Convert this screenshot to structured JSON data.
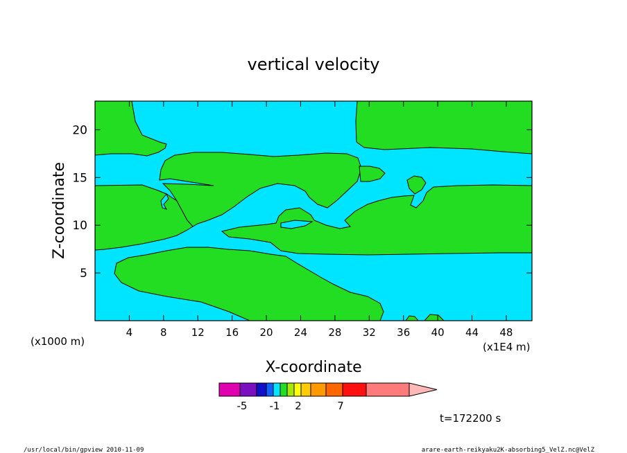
{
  "chart_data": {
    "type": "contour",
    "title": "vertical velocity",
    "xlabel": "X-coordinate",
    "ylabel": "Z-coordinate",
    "x_unit": "(x1E4 m)",
    "y_unit": "(x1000 m)",
    "xlim": [
      0,
      51
    ],
    "ylim": [
      0,
      23
    ],
    "x_ticks": [
      4,
      8,
      12,
      16,
      20,
      24,
      28,
      32,
      36,
      40,
      44,
      48
    ],
    "y_ticks": [
      5,
      10,
      15,
      20
    ],
    "fill_colors": {
      "negative": "#00e5ff",
      "positive": "#22dd22"
    },
    "colorbar": {
      "colors": [
        "#e000b0",
        "#7a10c0",
        "#1010c8",
        "#1060ff",
        "#00e5ff",
        "#22dd22",
        "#a8e800",
        "#ffff00",
        "#ffcc00",
        "#ff9900",
        "#ff6600",
        "#ff1010",
        "#ff7b7b",
        "#ffb8b8"
      ],
      "tick_labels": [
        "-5",
        "-1",
        "2",
        "7"
      ]
    },
    "time_label": "t=172200 s"
  },
  "footer": {
    "left": "/usr/local/bin/gpview  2010-11-09",
    "right": "arare-earth-reikyaku2K-absorbing5_VelZ.nc@VelZ"
  }
}
